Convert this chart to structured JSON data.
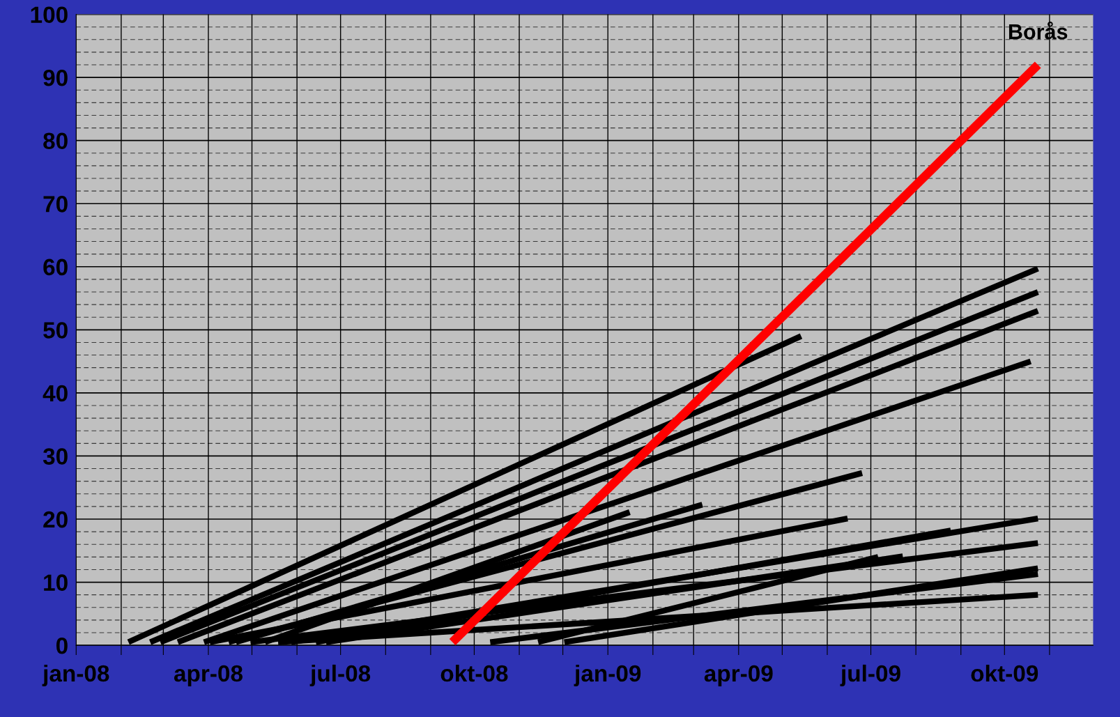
{
  "chart_data": {
    "type": "line",
    "xlim": [
      "2008-01-01",
      "2009-12-01"
    ],
    "xticks": [
      {
        "value": "2008-01-01",
        "label": "jan-08"
      },
      {
        "value": "2008-02-01",
        "label": null
      },
      {
        "value": "2008-03-01",
        "label": null
      },
      {
        "value": "2008-04-01",
        "label": "apr-08"
      },
      {
        "value": "2008-05-01",
        "label": null
      },
      {
        "value": "2008-06-01",
        "label": null
      },
      {
        "value": "2008-07-01",
        "label": "jul-08"
      },
      {
        "value": "2008-08-01",
        "label": null
      },
      {
        "value": "2008-09-01",
        "label": null
      },
      {
        "value": "2008-10-01",
        "label": "okt-08"
      },
      {
        "value": "2008-11-01",
        "label": null
      },
      {
        "value": "2008-12-01",
        "label": null
      },
      {
        "value": "2009-01-01",
        "label": "jan-09"
      },
      {
        "value": "2009-02-01",
        "label": null
      },
      {
        "value": "2009-03-01",
        "label": null
      },
      {
        "value": "2009-04-01",
        "label": "apr-09"
      },
      {
        "value": "2009-05-01",
        "label": null
      },
      {
        "value": "2009-06-01",
        "label": null
      },
      {
        "value": "2009-07-01",
        "label": "jul-09"
      },
      {
        "value": "2009-08-01",
        "label": null
      },
      {
        "value": "2009-09-01",
        "label": null
      },
      {
        "value": "2009-10-01",
        "label": "okt-09"
      },
      {
        "value": "2009-11-01",
        "label": null
      }
    ],
    "ylim": [
      0,
      100
    ],
    "yticks": [
      0,
      {
        "value": 2,
        "label": null
      },
      {
        "value": 4,
        "label": null
      },
      {
        "value": 6,
        "label": null
      },
      {
        "value": 8,
        "label": null
      },
      10,
      {
        "value": 12,
        "label": null
      },
      {
        "value": 14,
        "label": null
      },
      {
        "value": 16,
        "label": null
      },
      {
        "value": 18,
        "label": null
      },
      20,
      {
        "value": 22,
        "label": null
      },
      {
        "value": 24,
        "label": null
      },
      {
        "value": 26,
        "label": null
      },
      {
        "value": 28,
        "label": null
      },
      30,
      {
        "value": 32,
        "label": null
      },
      {
        "value": 34,
        "label": null
      },
      {
        "value": 36,
        "label": null
      },
      {
        "value": 38,
        "label": null
      },
      40,
      {
        "value": 42,
        "label": null
      },
      {
        "value": 44,
        "label": null
      },
      {
        "value": 46,
        "label": null
      },
      {
        "value": 48,
        "label": null
      },
      50,
      {
        "value": 52,
        "label": null
      },
      {
        "value": 54,
        "label": null
      },
      {
        "value": 56,
        "label": null
      },
      {
        "value": 58,
        "label": null
      },
      60,
      {
        "value": 62,
        "label": null
      },
      {
        "value": 64,
        "label": null
      },
      {
        "value": 66,
        "label": null
      },
      {
        "value": 68,
        "label": null
      },
      70,
      {
        "value": 72,
        "label": null
      },
      {
        "value": 74,
        "label": null
      },
      {
        "value": 76,
        "label": null
      },
      {
        "value": 78,
        "label": null
      },
      80,
      {
        "value": 82,
        "label": null
      },
      {
        "value": 84,
        "label": null
      },
      {
        "value": 86,
        "label": null
      },
      {
        "value": 88,
        "label": null
      },
      90,
      {
        "value": 92,
        "label": null
      },
      {
        "value": 94,
        "label": null
      },
      {
        "value": 96,
        "label": null
      },
      {
        "value": 98,
        "label": null
      },
      100
    ],
    "grid": true,
    "legend": false,
    "marker": "none",
    "line_style": "solid",
    "series": [
      {
        "color": "#000000",
        "x": [
          "2008-02-06",
          "2009-05-14"
        ],
        "values": [
          0.5,
          49
        ]
      },
      {
        "color": "#000000",
        "x": [
          "2008-02-21",
          "2009-10-24"
        ],
        "values": [
          0.5,
          59.7
        ]
      },
      {
        "color": "#000000",
        "x": [
          "2008-02-28",
          "2009-10-24"
        ],
        "values": [
          0.5,
          56
        ]
      },
      {
        "color": "#000000",
        "x": [
          "2008-03-11",
          "2009-10-24"
        ],
        "values": [
          0.5,
          53
        ]
      },
      {
        "color": "#000000",
        "x": [
          "2008-03-29",
          "2009-10-19"
        ],
        "values": [
          0.5,
          45
        ]
      },
      {
        "color": "#000000",
        "x": [
          "2008-04-15",
          "2009-06-25"
        ],
        "values": [
          0.5,
          27.3
        ]
      },
      {
        "color": "#000000",
        "x": [
          "2008-04-20",
          "2009-03-07"
        ],
        "values": [
          0.5,
          22.3
        ]
      },
      {
        "color": "#000000",
        "x": [
          "2008-05-10",
          "2009-01-16"
        ],
        "values": [
          0.5,
          21.1
        ]
      },
      {
        "color": "#000000",
        "x": [
          "2008-04-02",
          "2009-06-15"
        ],
        "values": [
          0.5,
          20.1
        ]
      },
      {
        "color": "#000000",
        "x": [
          "2008-05-28",
          "2009-10-24"
        ],
        "values": [
          0.5,
          20.1
        ]
      },
      {
        "color": "#000000",
        "x": [
          "2008-06-14",
          "2009-08-25"
        ],
        "values": [
          0.5,
          18.2
        ]
      },
      {
        "color": "#000000",
        "x": [
          "2008-04-30",
          "2009-10-24"
        ],
        "values": [
          0.5,
          16.2
        ]
      },
      {
        "color": "#000000",
        "x": [
          "2008-06-21",
          "2009-07-23"
        ],
        "values": [
          0.5,
          14.1
        ]
      },
      {
        "color": "#000000",
        "x": [
          "2008-11-14",
          "2009-07-06"
        ],
        "values": [
          0.5,
          14
        ]
      },
      {
        "color": "#000000",
        "x": [
          "2008-12-02",
          "2009-10-24"
        ],
        "values": [
          0.5,
          12.2
        ]
      },
      {
        "color": "#000000",
        "x": [
          "2008-10-12",
          "2009-10-24"
        ],
        "values": [
          0.5,
          11.3
        ]
      },
      {
        "color": "#000000",
        "x": [
          "2008-05-19",
          "2009-10-24"
        ],
        "values": [
          0.5,
          8
        ]
      },
      {
        "name": "Borås",
        "color": "#ff0000",
        "x": [
          "2008-09-16",
          "2009-10-24"
        ],
        "values": [
          0.5,
          92
        ]
      }
    ]
  }
}
